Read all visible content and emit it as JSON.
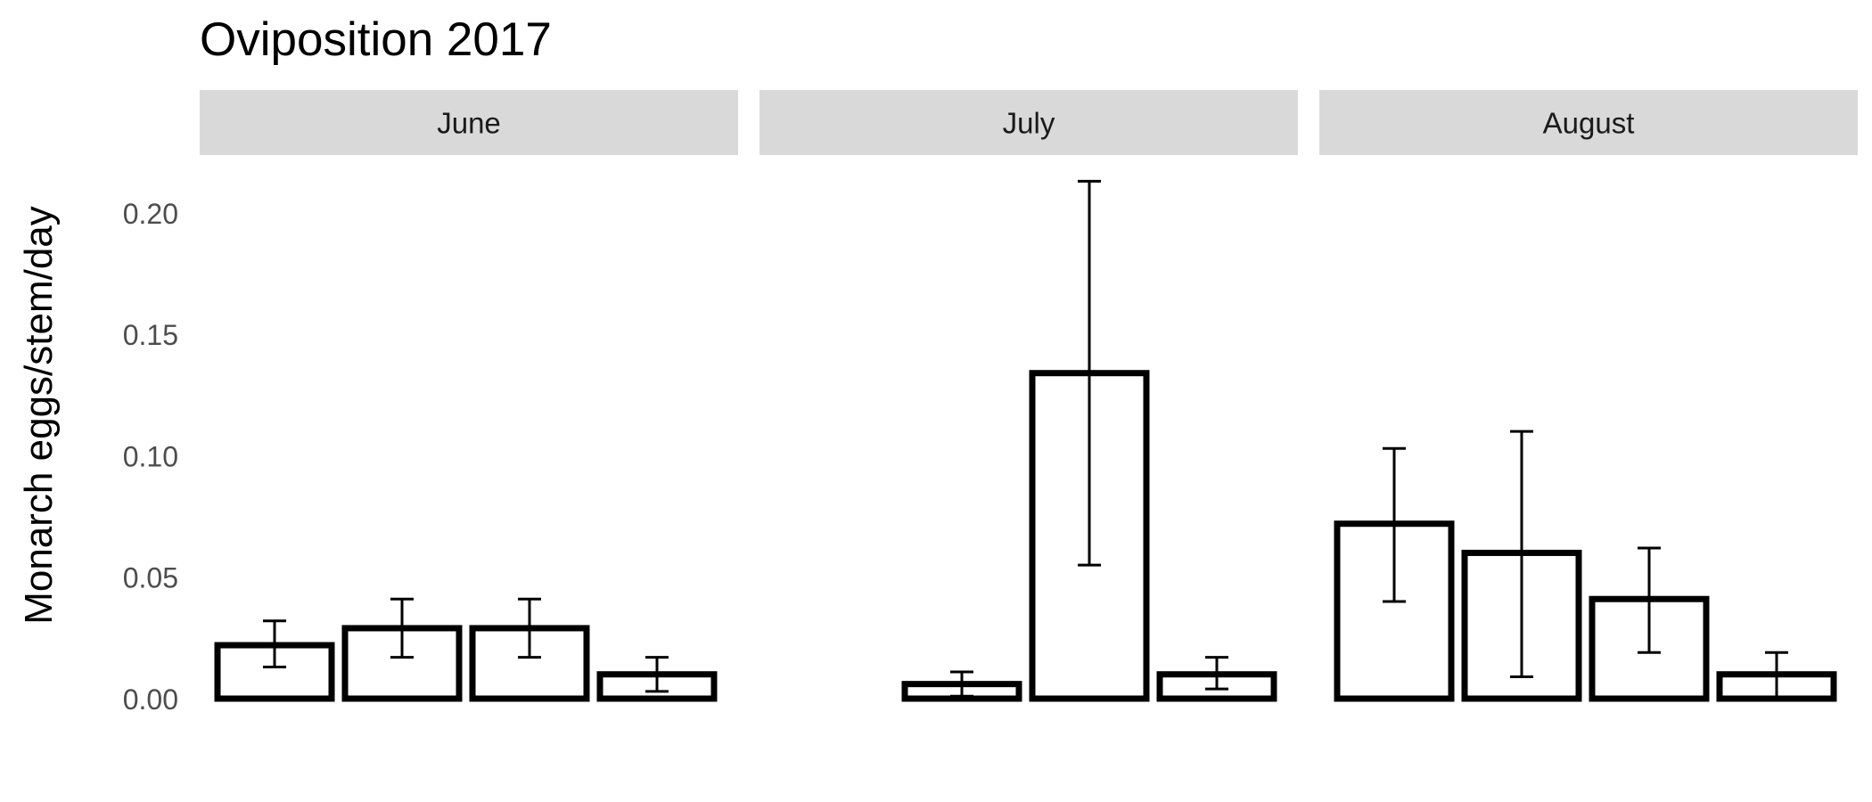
{
  "chart_data": {
    "type": "bar",
    "title": "Oviposition 2017",
    "ylabel": "Monarch eggs/stem/day",
    "xlabel": "",
    "ylim": [
      0,
      0.22
    ],
    "yticks": [
      "0.00",
      "0.05",
      "0.10",
      "0.15",
      "0.20"
    ],
    "grid": false,
    "panels": [
      {
        "name": "June",
        "values": [
          0.022,
          0.029,
          0.029,
          0.01
        ],
        "err_low": [
          0.013,
          0.017,
          0.017,
          0.003
        ],
        "err_high": [
          0.032,
          0.041,
          0.041,
          0.017
        ]
      },
      {
        "name": "July",
        "values": [
          0.0,
          0.006,
          0.134,
          0.01
        ],
        "err_low": [
          0.0,
          0.001,
          0.055,
          0.004
        ],
        "err_high": [
          0.0,
          0.011,
          0.213,
          0.017
        ]
      },
      {
        "name": "August",
        "values": [
          0.072,
          0.06,
          0.041,
          0.01
        ],
        "err_low": [
          0.04,
          0.009,
          0.019,
          0.0
        ],
        "err_high": [
          0.103,
          0.11,
          0.062,
          0.019
        ]
      }
    ]
  }
}
